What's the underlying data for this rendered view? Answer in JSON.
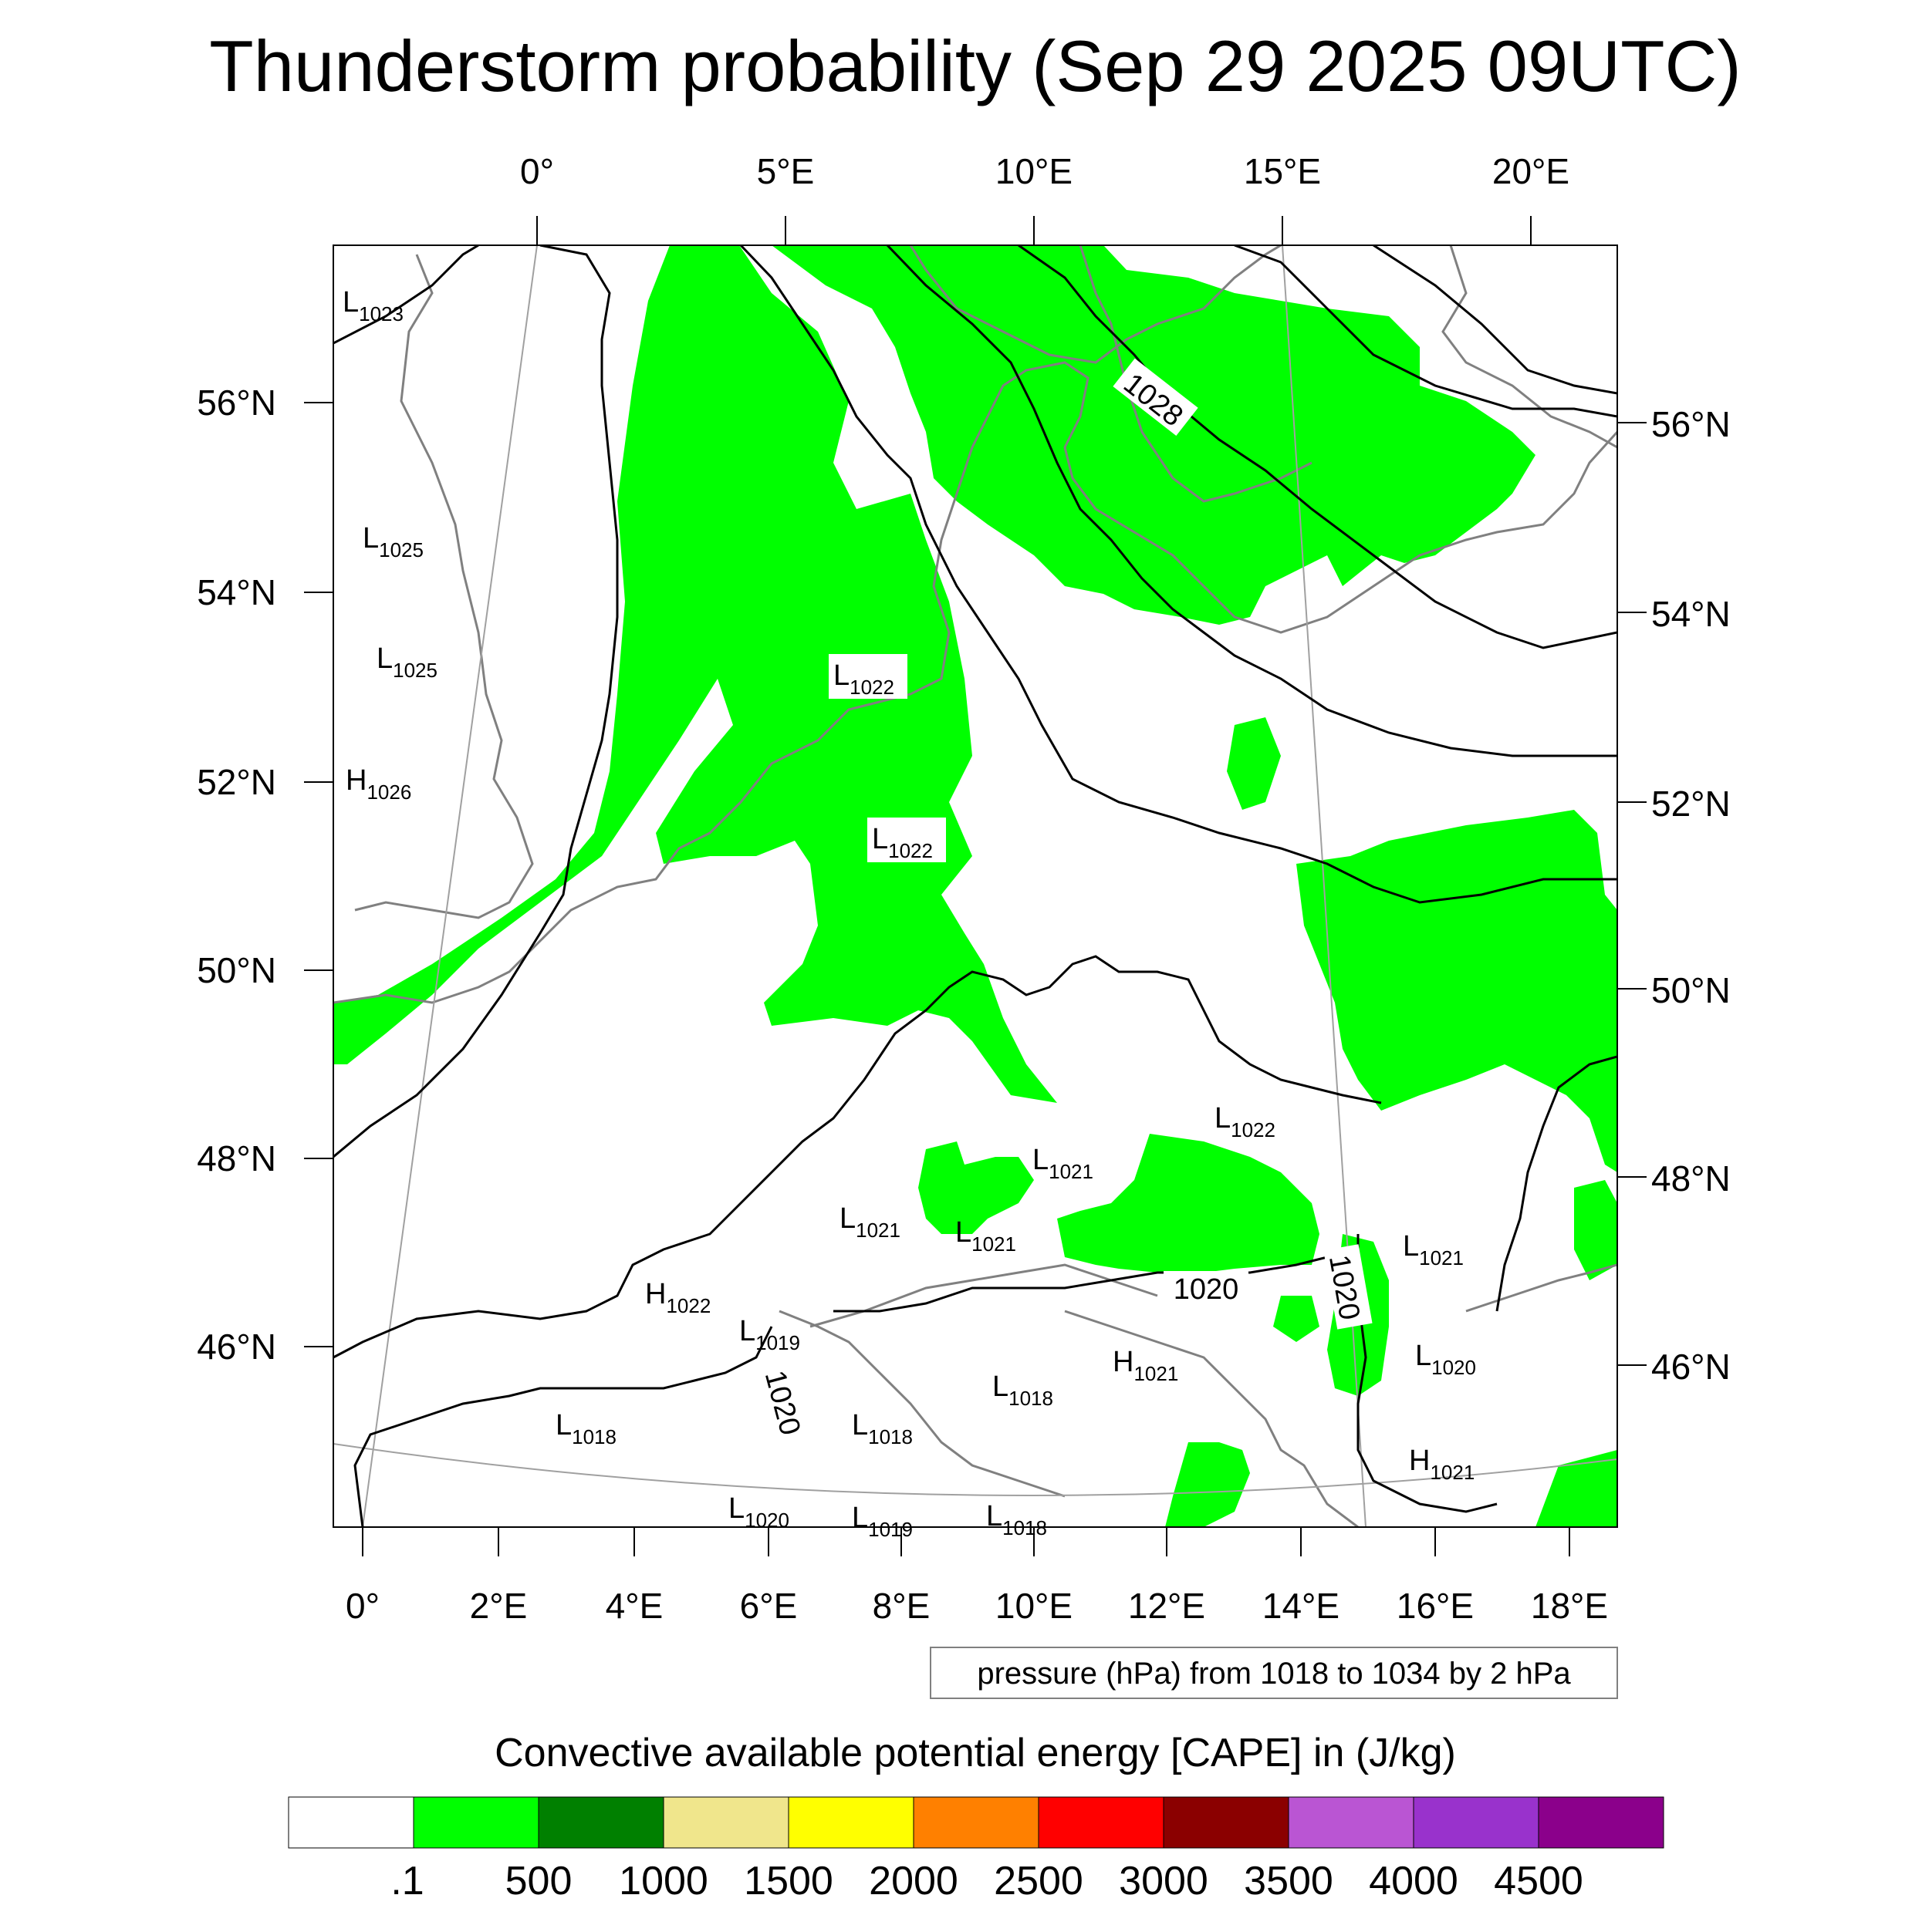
{
  "title": "Thunderstorm probability (Sep 29 2025 09UTC)",
  "top_lon_labels": [
    "0°",
    "5°E",
    "10°E",
    "15°E",
    "20°E"
  ],
  "bottom_lon_labels": [
    "0°",
    "2°E",
    "4°E",
    "6°E",
    "8°E",
    "10°E",
    "12°E",
    "14°E",
    "16°E",
    "18°E"
  ],
  "left_lat_labels": [
    "56°N",
    "54°N",
    "52°N",
    "50°N",
    "48°N",
    "46°N"
  ],
  "right_lat_labels": [
    "56°N",
    "54°N",
    "52°N",
    "50°N",
    "48°N",
    "46°N"
  ],
  "pressure_centers": [
    {
      "t": "L",
      "v": "1023"
    },
    {
      "t": "L",
      "v": "1025"
    },
    {
      "t": "L",
      "v": "1025"
    },
    {
      "t": "H",
      "v": "1026"
    },
    {
      "t": "L",
      "v": "1022"
    },
    {
      "t": "L",
      "v": "1022"
    },
    {
      "t": "L",
      "v": "1022"
    },
    {
      "t": "L",
      "v": "1021"
    },
    {
      "t": "L",
      "v": "1021"
    },
    {
      "t": "L",
      "v": "1021"
    },
    {
      "t": "H",
      "v": "1022"
    },
    {
      "t": "L",
      "v": "1021"
    },
    {
      "t": "L",
      "v": "1020"
    },
    {
      "t": "H",
      "v": "1021"
    },
    {
      "t": "H",
      "v": "1021"
    },
    {
      "t": "L",
      "v": "1018"
    },
    {
      "t": "L",
      "v": "1018"
    },
    {
      "t": "L",
      "v": "1018"
    },
    {
      "t": "L",
      "v": "1020"
    },
    {
      "t": "L",
      "v": "1019"
    },
    {
      "t": "L",
      "v": "1018"
    },
    {
      "t": "L",
      "v": "1019"
    }
  ],
  "isobar_labels": [
    "1028",
    "1020",
    "1020",
    "1020"
  ],
  "contour_note": "pressure (hPa) from 1018 to 1034 by 2 hPa",
  "colorbar": {
    "title": "Convective available potential energy [CAPE] in (J/kg)",
    "labels": [
      ".1",
      "500",
      "1000",
      "1500",
      "2000",
      "2500",
      "3000",
      "3500",
      "4000",
      "4500"
    ],
    "colors": [
      "#ffffff",
      "#00ff00",
      "#008000",
      "#f0e68c",
      "#ffff00",
      "#ff8000",
      "#ff0000",
      "#8b0000",
      "#ba55d3",
      "#9932cc",
      "#8b008b"
    ]
  }
}
